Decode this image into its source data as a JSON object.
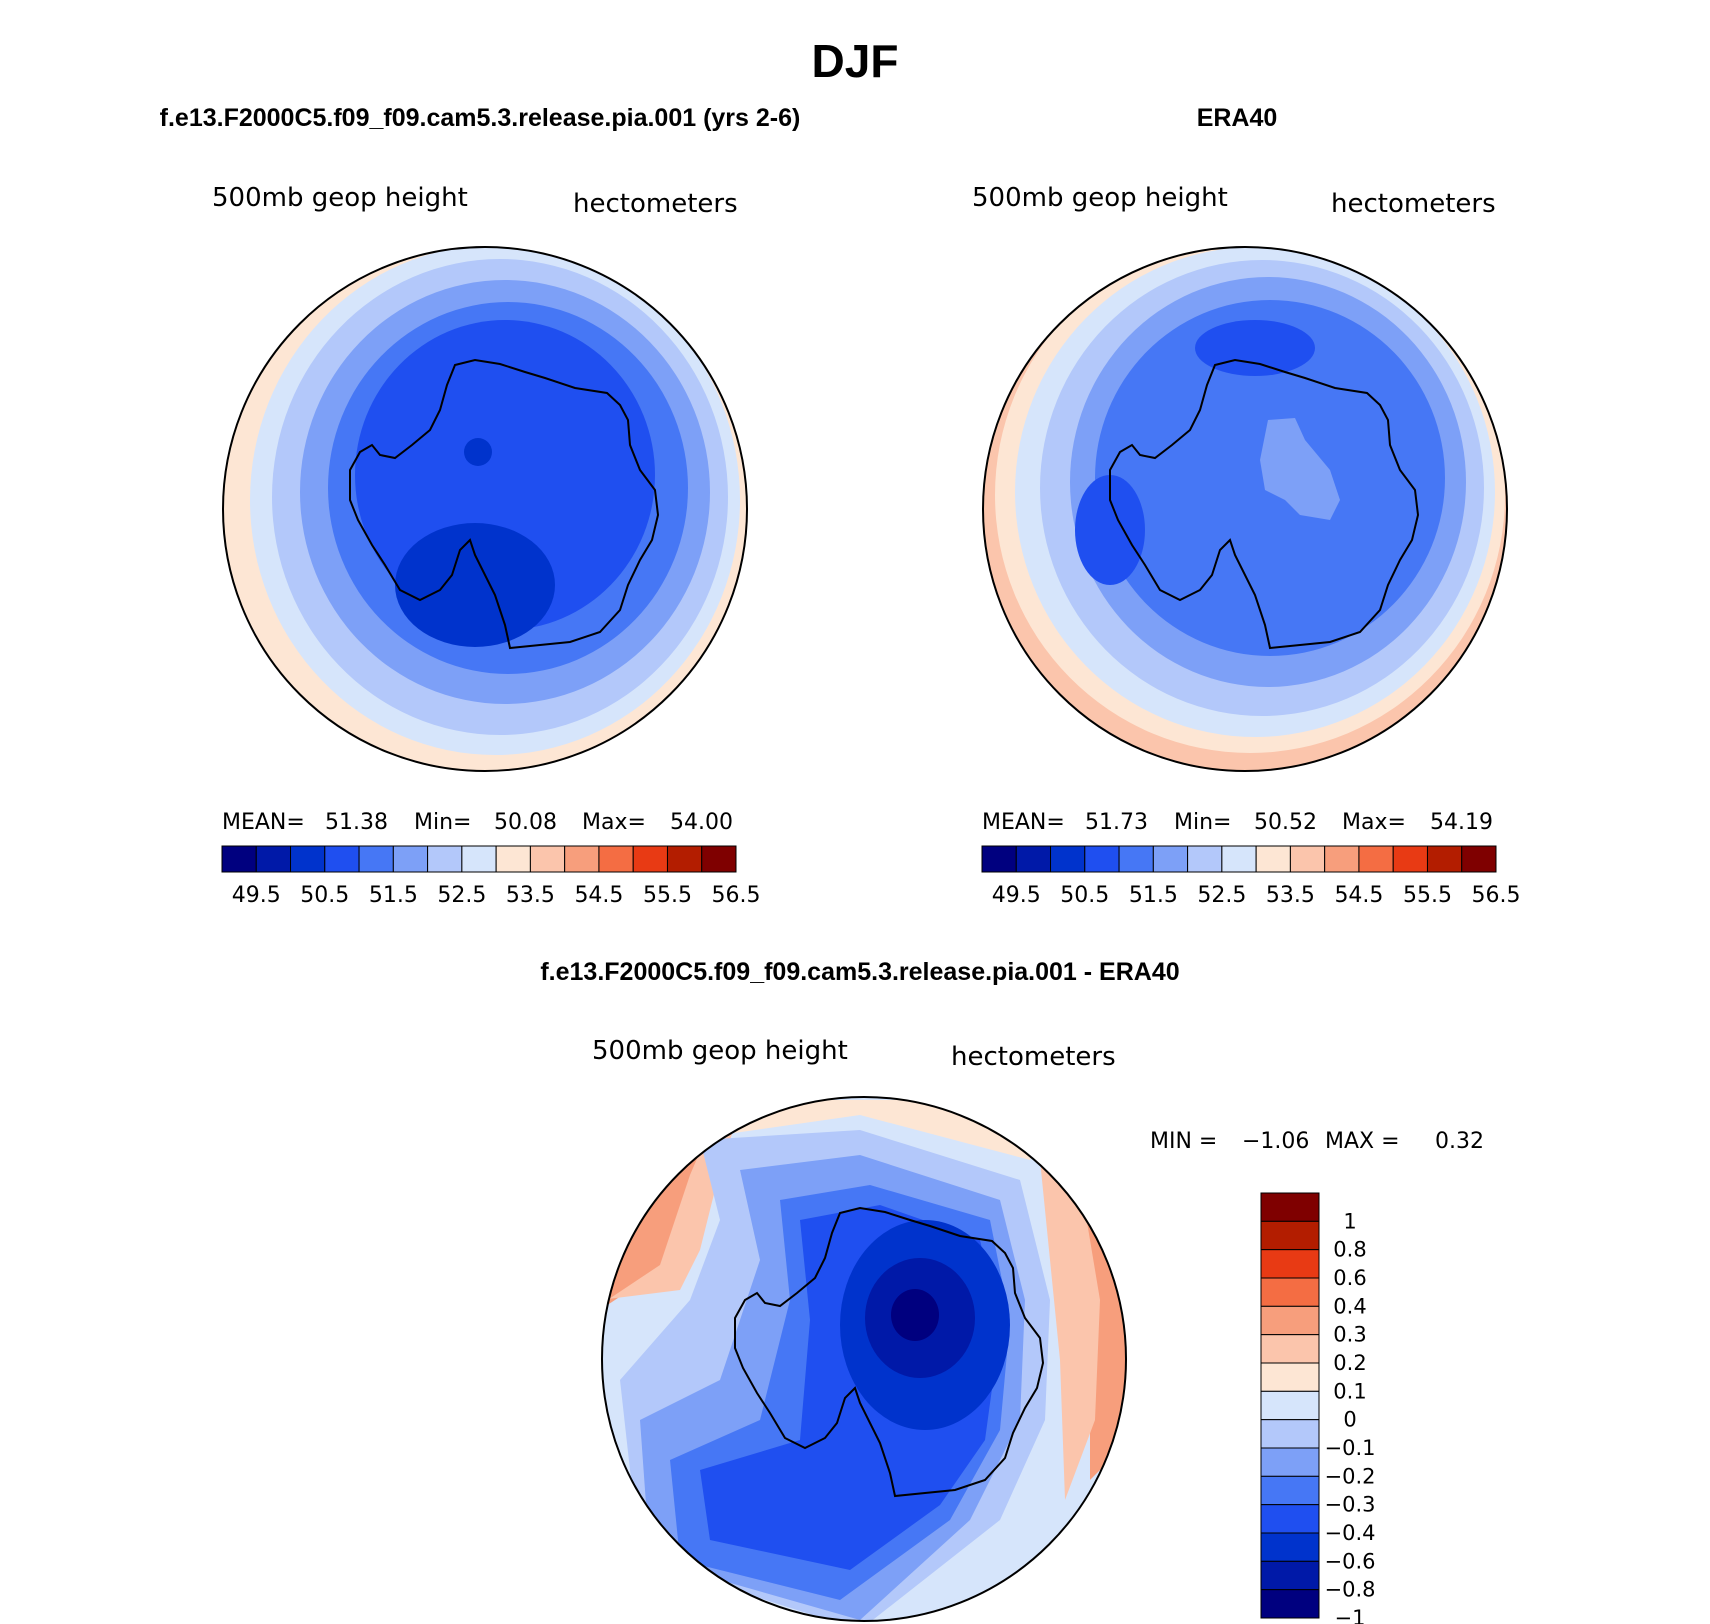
{
  "title": "DJF",
  "panels": [
    {
      "id": "model",
      "heading": "f.e13.F2000C5.f09_f09.cam5.3.release.pia.001 (yrs 2-6)",
      "variable": "500mb geop height",
      "units": "hectometers",
      "stats": {
        "mean_label": "MEAN=",
        "mean": "51.38",
        "min_label": "Min=",
        "min": "50.08",
        "max_label": "Max=",
        "max": "54.00"
      }
    },
    {
      "id": "obs",
      "heading": "ERA40",
      "variable": "500mb geop height",
      "units": "hectometers",
      "stats": {
        "mean_label": "MEAN=",
        "mean": "51.73",
        "min_label": "Min=",
        "min": "50.52",
        "max_label": "Max=",
        "max": "54.19"
      }
    },
    {
      "id": "diff",
      "heading": "f.e13.F2000C5.f09_f09.cam5.3.release.pia.001 - ERA40",
      "variable": "500mb geop height",
      "units": "hectometers",
      "stats": {
        "min_label": "MIN =",
        "min": "−1.06",
        "max_label": "MAX =",
        "max": "0.32"
      }
    }
  ],
  "abs_colorbar": {
    "colors": [
      "#00007f",
      "#0019a8",
      "#0033cc",
      "#1f4ff0",
      "#4677f5",
      "#7da0f7",
      "#b3c8fa",
      "#d6e5fb",
      "#fde6d4",
      "#fbc5ac",
      "#f79e7c",
      "#f46d43",
      "#e83a14",
      "#b31d00",
      "#7f0000"
    ],
    "tick_labels": [
      "49.5",
      "50.5",
      "51.5",
      "52.5",
      "53.5",
      "54.5",
      "55.5",
      "56.5"
    ]
  },
  "diff_colorbar": {
    "colors": [
      "#7f0000",
      "#b31d00",
      "#e83a14",
      "#f46d43",
      "#f79e7c",
      "#fbc5ac",
      "#fde6d4",
      "#d6e5fb",
      "#b3c8fa",
      "#7da0f7",
      "#4677f5",
      "#1f4ff0",
      "#0033cc",
      "#0019a8",
      "#00007f"
    ],
    "tick_labels": [
      "1",
      "0.8",
      "0.6",
      "0.4",
      "0.3",
      "0.2",
      "0.1",
      "0",
      "−0.1",
      "−0.2",
      "−0.3",
      "−0.4",
      "−0.6",
      "−0.8",
      "−1"
    ]
  },
  "map_colors": {
    "warm_far": "#fbc5ac",
    "warm_near": "#fde6d4",
    "neutral": "#d6e5fb",
    "blue1": "#b3c8fa",
    "blue2": "#7da0f7",
    "blue3": "#4677f5",
    "blue4": "#1f4ff0",
    "blue5": "#0033cc",
    "blue6": "#0019a8",
    "blue7": "#00007f",
    "orange": "#f79e7c",
    "coast": "#000000"
  }
}
